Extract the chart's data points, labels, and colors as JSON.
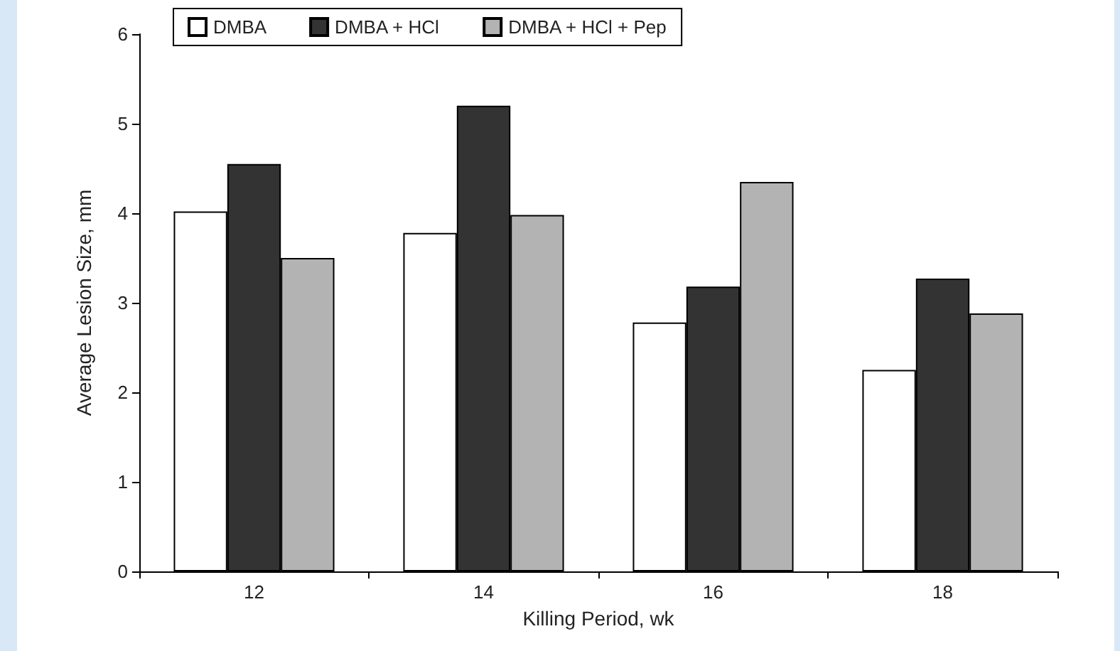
{
  "chart_data": {
    "type": "bar",
    "categories": [
      "12",
      "14",
      "16",
      "18"
    ],
    "xlabel": "Killing Period, wk",
    "ylabel": "Average Lesion Size, mm",
    "series": [
      {
        "name": "DMBA",
        "color": "#ffffff",
        "values": [
          4.02,
          3.78,
          2.78,
          2.25
        ]
      },
      {
        "name": "DMBA + HCl",
        "color": "#333333",
        "values": [
          4.55,
          5.2,
          3.18,
          3.27
        ]
      },
      {
        "name": "DMBA + HCl + Pep",
        "color": "#b3b3b3",
        "values": [
          3.5,
          3.98,
          4.35,
          2.88
        ]
      }
    ],
    "ylim": [
      0,
      6
    ],
    "yticks": [
      0,
      1,
      2,
      3,
      4,
      5,
      6
    ],
    "grid": false,
    "legend": "top left"
  }
}
